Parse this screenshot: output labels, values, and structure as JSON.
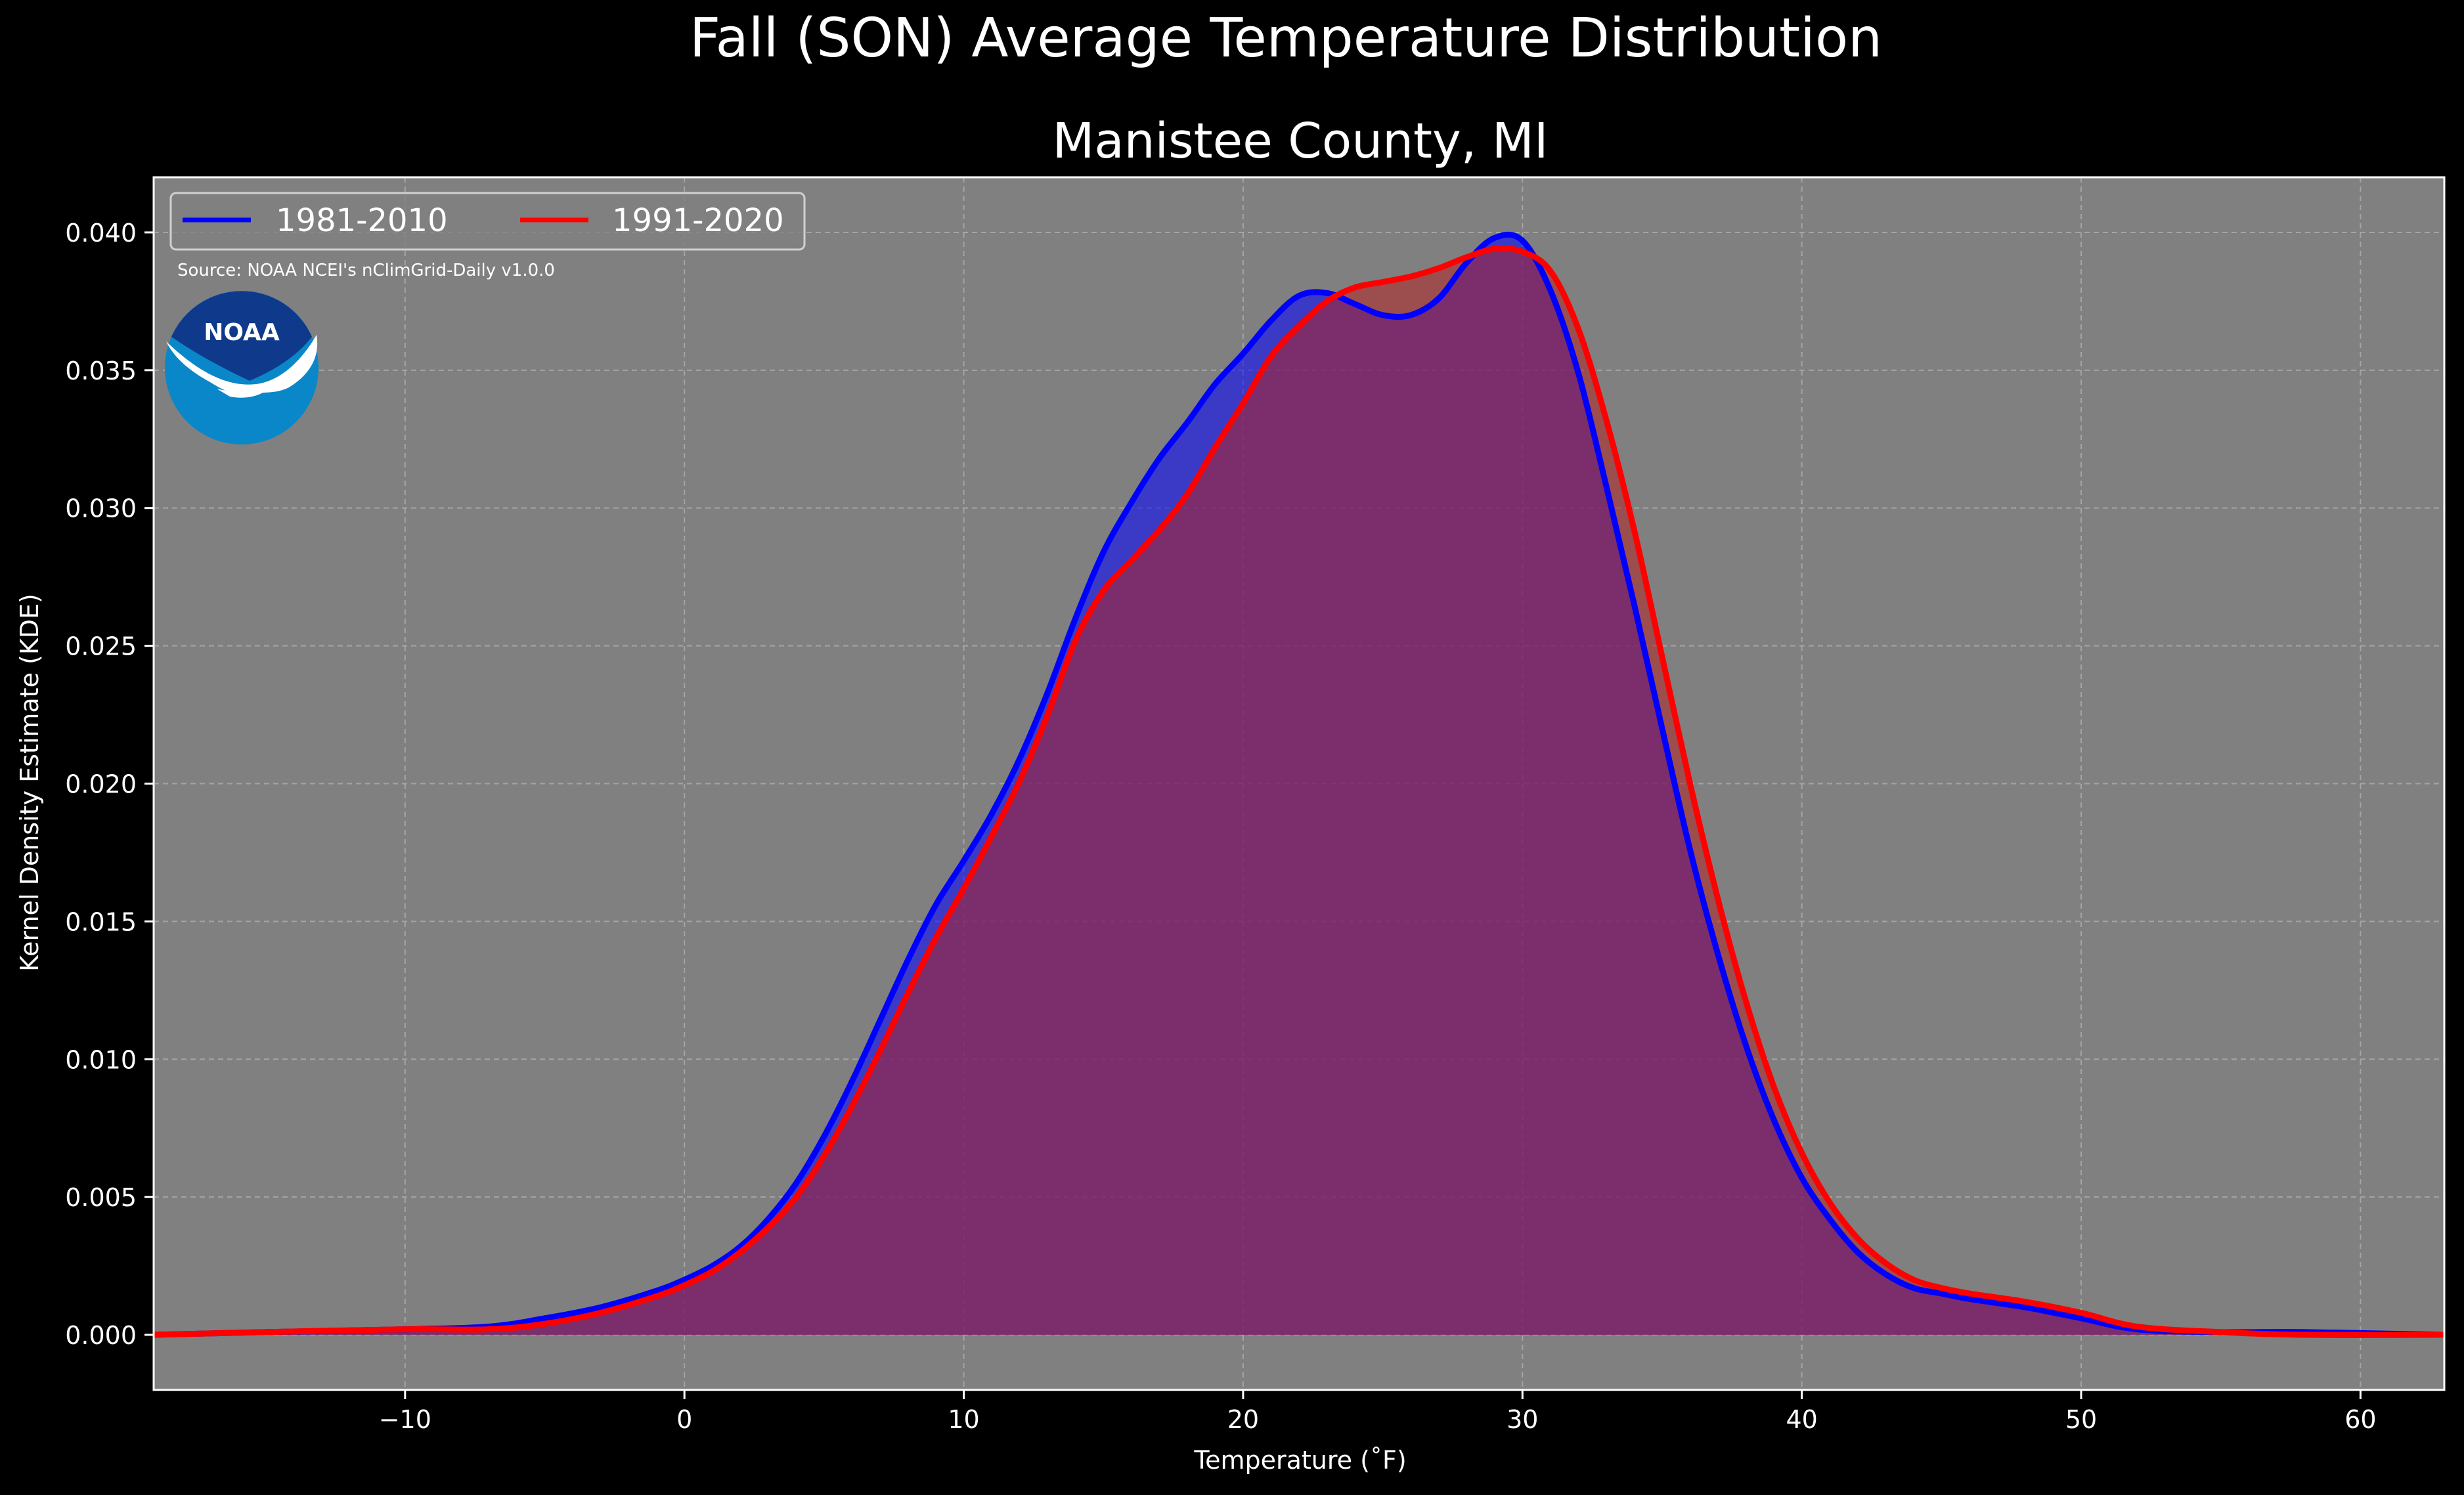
{
  "chart_data": {
    "type": "area",
    "title": "Fall (SON) Average Temperature Distribution",
    "subtitle": "Manistee County, MI",
    "xlabel": "Temperature ($^\\circ$F)",
    "xlabel_display": "Temperature (˚F)",
    "ylabel": "Kernel Density Estimate (KDE)",
    "xlim": [
      -19,
      63
    ],
    "ylim": [
      -0.002,
      0.042
    ],
    "xticks": [
      -10,
      0,
      10,
      20,
      30,
      40,
      50,
      60
    ],
    "xtick_labels": [
      "−10",
      "0",
      "10",
      "20",
      "30",
      "40",
      "50",
      "60"
    ],
    "yticks": [
      0.0,
      0.005,
      0.01,
      0.015,
      0.02,
      0.025,
      0.03,
      0.035,
      0.04
    ],
    "ytick_labels": [
      "0.000",
      "0.005",
      "0.010",
      "0.015",
      "0.020",
      "0.025",
      "0.030",
      "0.035",
      "0.040"
    ],
    "grid": true,
    "legend_position": "top-left",
    "source": "Source: NOAA NCEI's nClimGrid-Daily v1.0.0",
    "logo_text": "NOAA",
    "colors": {
      "figure_bg": "#000000",
      "axes_bg": "#808080",
      "text": "#ffffff",
      "grid": "#b4b4b4"
    },
    "series": [
      {
        "name": "1981-2010",
        "color": "#0000ff",
        "fill_color": "#0000ff",
        "x": [
          -19,
          -15,
          -10,
          -7,
          -5,
          -3,
          -1,
          0,
          1,
          2,
          3,
          4,
          5,
          6,
          7,
          8,
          9,
          10,
          11,
          12,
          13,
          14,
          15,
          16,
          17,
          18,
          19,
          20,
          21,
          22,
          23,
          24,
          25,
          26,
          27,
          28,
          29,
          30,
          31,
          32,
          33,
          34,
          35,
          36,
          37,
          38,
          39,
          40,
          41,
          42,
          43,
          44,
          45,
          46,
          48,
          50,
          52,
          55,
          58,
          63
        ],
        "values": [
          0.0,
          0.0001,
          0.0002,
          0.0003,
          0.0006,
          0.001,
          0.0016,
          0.002,
          0.0025,
          0.0032,
          0.0042,
          0.0055,
          0.0072,
          0.0092,
          0.0114,
          0.0136,
          0.0156,
          0.0172,
          0.0189,
          0.0209,
          0.0233,
          0.026,
          0.0284,
          0.0302,
          0.0318,
          0.0331,
          0.0345,
          0.0356,
          0.0368,
          0.0377,
          0.0378,
          0.0374,
          0.037,
          0.037,
          0.0376,
          0.0389,
          0.0398,
          0.0397,
          0.0379,
          0.0349,
          0.0308,
          0.0265,
          0.022,
          0.0176,
          0.0138,
          0.0105,
          0.0078,
          0.0057,
          0.0042,
          0.003,
          0.0022,
          0.0017,
          0.0015,
          0.0013,
          0.001,
          0.0006,
          0.0002,
          0.0001,
          0.0001,
          0.0
        ]
      },
      {
        "name": "1991-2020",
        "color": "#ff0000",
        "fill_color": "#b22222",
        "x": [
          -19,
          -15,
          -10,
          -7,
          -5,
          -3,
          -1,
          0,
          1,
          2,
          3,
          4,
          5,
          6,
          7,
          8,
          9,
          10,
          11,
          12,
          13,
          14,
          15,
          16,
          17,
          18,
          19,
          20,
          21,
          22,
          23,
          24,
          25,
          26,
          27,
          28,
          29,
          30,
          31,
          32,
          33,
          34,
          35,
          36,
          37,
          38,
          39,
          40,
          41,
          42,
          43,
          44,
          45,
          46,
          48,
          50,
          52,
          55,
          58,
          63
        ],
        "values": [
          0.0,
          0.0001,
          0.0002,
          0.0002,
          0.0004,
          0.0008,
          0.0014,
          0.0018,
          0.0023,
          0.003,
          0.0039,
          0.005,
          0.0065,
          0.0083,
          0.0103,
          0.0124,
          0.0144,
          0.0162,
          0.0181,
          0.0201,
          0.0225,
          0.0252,
          0.027,
          0.0281,
          0.0292,
          0.0305,
          0.0322,
          0.0338,
          0.0355,
          0.0366,
          0.0375,
          0.038,
          0.0382,
          0.0384,
          0.0387,
          0.0391,
          0.0394,
          0.0393,
          0.0386,
          0.0365,
          0.0332,
          0.0292,
          0.0246,
          0.02,
          0.0158,
          0.0121,
          0.009,
          0.0066,
          0.0048,
          0.0035,
          0.0026,
          0.002,
          0.0017,
          0.0015,
          0.0012,
          0.0008,
          0.0003,
          0.0001,
          0.0,
          0.0
        ]
      }
    ]
  }
}
